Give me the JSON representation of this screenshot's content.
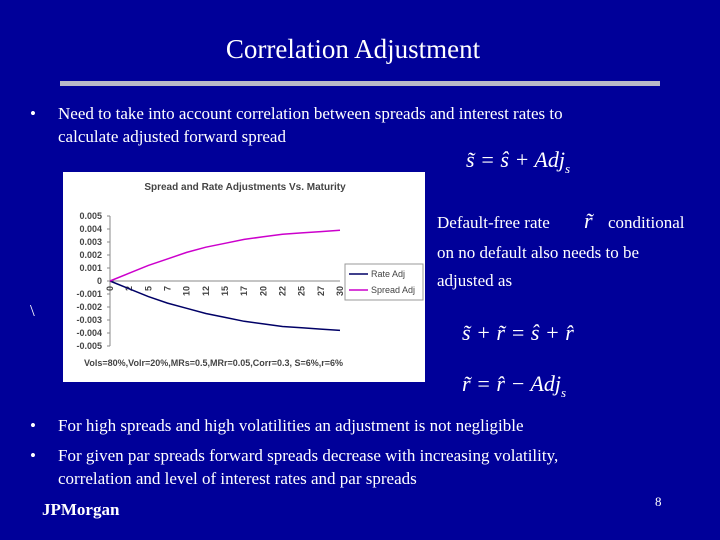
{
  "slide": {
    "title": "Correlation Adjustment",
    "bullets_top": [
      [
        "Need to take into account correlation between spreads and interest rates to",
        "calculate adjusted forward spread"
      ]
    ],
    "formula_1": {
      "main": "s̃ = ŝ + Adj",
      "sub": "s"
    },
    "side_text": [
      "Default-free rate",
      "conditional",
      "on no default also needs to be",
      "adjusted as"
    ],
    "side_symbol": "r̃",
    "formula_2": "s̃ + r̃ = ŝ + r̂",
    "formula_3": {
      "main": "r̃ = r̂ − Adj",
      "sub": "s"
    },
    "stray": "\\",
    "bullets_bottom": [
      [
        "For high spreads and high volatilities an adjustment is not negligible"
      ],
      [
        "For given par spreads forward spreads decrease with increasing volatility,",
        "correlation and level of interest rates and par spreads"
      ]
    ],
    "footer": "JPMorgan",
    "page_number": "8"
  },
  "chart_data": {
    "type": "line",
    "title": "Spread and Rate Adjustments Vs. Maturity",
    "note": "Vols=80%,Volr=20%,MRs=0.5,MRr=0.05,Corr=0.3, S=6%,r=6%",
    "categories": [
      "0",
      "2",
      "5",
      "7",
      "10",
      "12",
      "15",
      "17",
      "20",
      "22",
      "25",
      "27",
      "30"
    ],
    "series": [
      {
        "name": "Rate Adj",
        "color": "#000066",
        "values": [
          0,
          -0.0006,
          -0.0012,
          -0.0017,
          -0.0021,
          -0.0025,
          -0.0028,
          -0.0031,
          -0.0033,
          -0.0035,
          -0.0036,
          -0.0037,
          -0.0038
        ]
      },
      {
        "name": "Spread Adj",
        "color": "#cc00cc",
        "values": [
          0,
          0.0006,
          0.0012,
          0.0017,
          0.0022,
          0.0026,
          0.0029,
          0.0032,
          0.0034,
          0.0036,
          0.0037,
          0.0038,
          0.0039
        ]
      }
    ],
    "ylim": [
      -0.005,
      0.005
    ],
    "yticks": [
      0.005,
      0.004,
      0.003,
      0.002,
      0.001,
      0,
      -0.001,
      -0.002,
      -0.003,
      -0.004,
      -0.005
    ],
    "legend": "right"
  }
}
